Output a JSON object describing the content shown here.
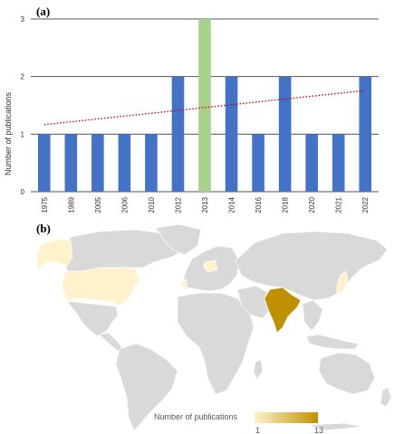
{
  "panel_a": {
    "label": "(a)",
    "chart_data": {
      "type": "bar",
      "categories": [
        "1975",
        "1989",
        "2005",
        "2006",
        "2010",
        "2012",
        "2013",
        "2014",
        "2016",
        "2018",
        "2020",
        "2021",
        "2022"
      ],
      "values": [
        1,
        1,
        1,
        1,
        1,
        2,
        3,
        2,
        1,
        2,
        1,
        1,
        2
      ],
      "highlight_category": "2013",
      "colors": {
        "bar": "#4472c4",
        "highlight": "#a9d18e",
        "trend": "#c00000"
      },
      "trendline": "linear, dotted",
      "title": "",
      "xlabel": "",
      "ylabel": "Number of publications",
      "ylim": [
        0,
        3
      ],
      "yticks": [
        "0",
        "1",
        "2",
        "3"
      ],
      "grid": true
    }
  },
  "panel_b": {
    "label": "(b)",
    "map": {
      "type": "choropleth",
      "countries": [
        {
          "name": "India",
          "value": 13
        },
        {
          "name": "USA",
          "value": 2
        },
        {
          "name": "Japan",
          "value": 2
        },
        {
          "name": "Poland",
          "value": 1
        },
        {
          "name": "Portugal",
          "value": 1
        }
      ],
      "base_color": "#d9d9d9",
      "scale_colors": {
        "low": "#fff2cc",
        "high": "#bf9000"
      }
    },
    "legend": {
      "title": "Number of publications",
      "min_label": "1",
      "max_label": "13"
    }
  }
}
